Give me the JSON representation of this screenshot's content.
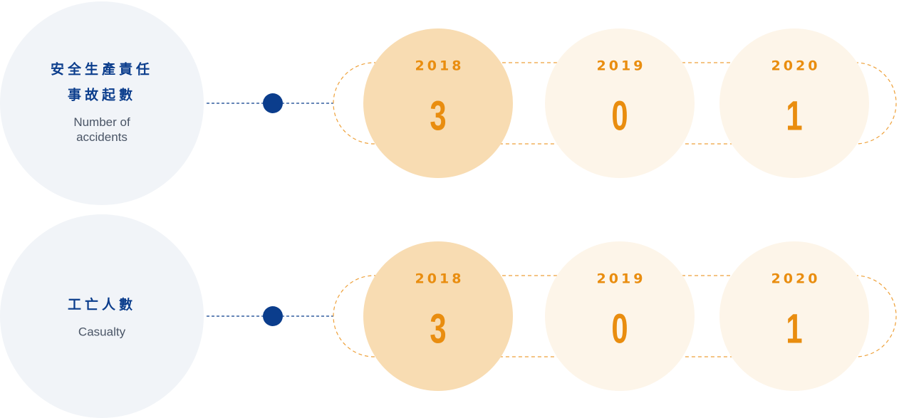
{
  "rows": [
    {
      "title_lines": [
        "安全生產責任",
        "事故起數"
      ],
      "subtitle_lines": [
        "Number of",
        "accidents"
      ],
      "years": [
        {
          "year": 2018,
          "value": 3
        },
        {
          "year": 2019,
          "value": 0
        },
        {
          "year": 2020,
          "value": 1
        }
      ]
    },
    {
      "title_lines": [
        "工亡人數"
      ],
      "subtitle_lines": [
        "Casualty"
      ],
      "years": [
        {
          "year": 2018,
          "value": 3
        },
        {
          "year": 2019,
          "value": 0
        },
        {
          "year": 2020,
          "value": 1
        }
      ]
    }
  ]
}
